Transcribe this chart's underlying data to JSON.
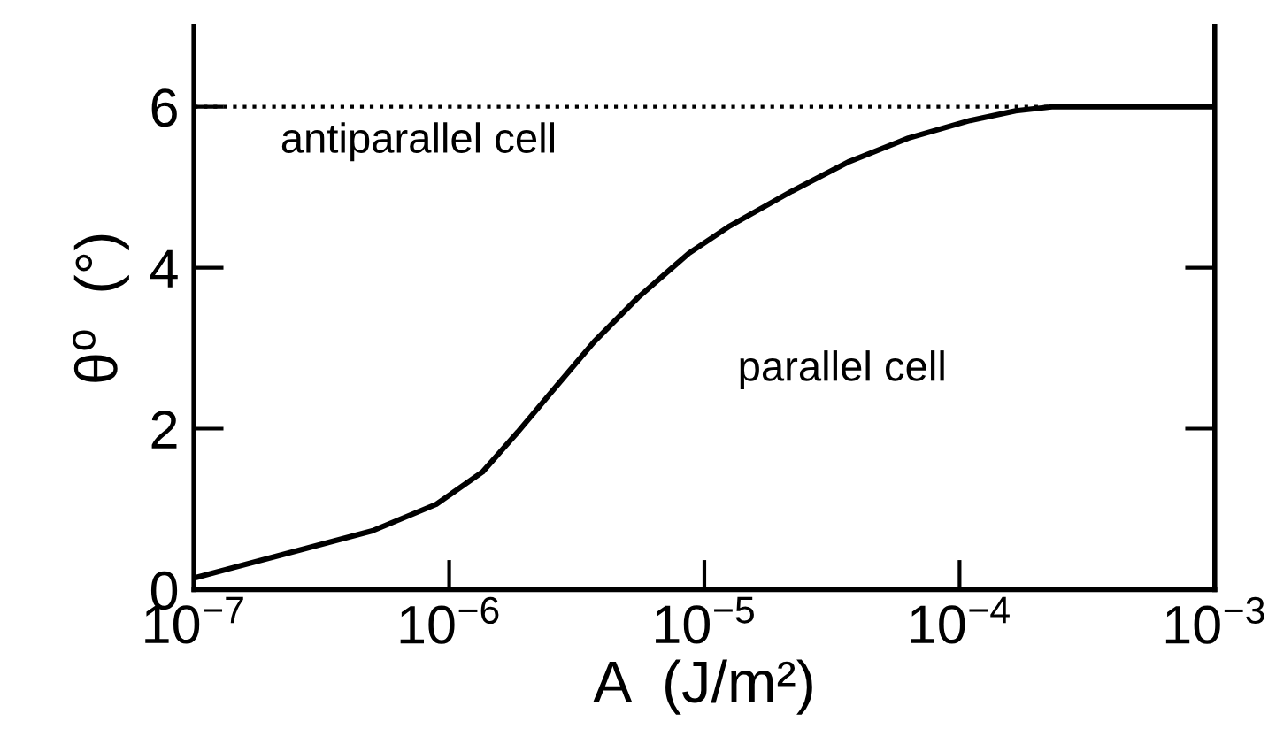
{
  "chart_data": {
    "type": "line",
    "xlabel": "A  (J/m²)",
    "ylabel": "θ$^{o}$  (°)",
    "log": "x",
    "xlim": [
      1e-07,
      0.001
    ],
    "xticks": [
      {
        "value": 1e-07,
        "label": "10$^{−7}$"
      },
      {
        "value": 1e-06,
        "label": "10$^{−6}$"
      },
      {
        "value": 1e-05,
        "label": "10$^{−5}$"
      },
      {
        "value": 0.0001,
        "label": "10$^{−4}$"
      },
      {
        "value": 0.001,
        "label": "10$^{−3}$"
      }
    ],
    "ylim": [
      0,
      7
    ],
    "yticks": [
      0,
      2,
      4,
      6
    ],
    "series": [
      {
        "color": "#000000",
        "line_style": "solid",
        "x": [
          1.02e-07,
          2.2e-07,
          5e-07,
          8.9e-07,
          1.35e-06,
          1.86e-06,
          2.57e-06,
          3.7e-06,
          5.5e-06,
          8.7e-06,
          1.26e-05,
          2.2e-05,
          3.7e-05,
          6.3e-05,
          0.00011,
          0.000166,
          0.00023,
          0.001
        ],
        "values": [
          0.15,
          0.43,
          0.73,
          1.06,
          1.46,
          1.96,
          2.49,
          3.08,
          3.63,
          4.18,
          4.52,
          4.95,
          5.32,
          5.61,
          5.83,
          5.95,
          6.0,
          6.0
        ]
      }
    ],
    "ref_lines": [
      {
        "axis": "y",
        "value": 6,
        "color": "#000000",
        "line_style": "dotted"
      }
    ],
    "annotations": [
      "antiparallel cell",
      "parallel cell"
    ],
    "grid": false,
    "legend": false,
    "marker": "none"
  }
}
